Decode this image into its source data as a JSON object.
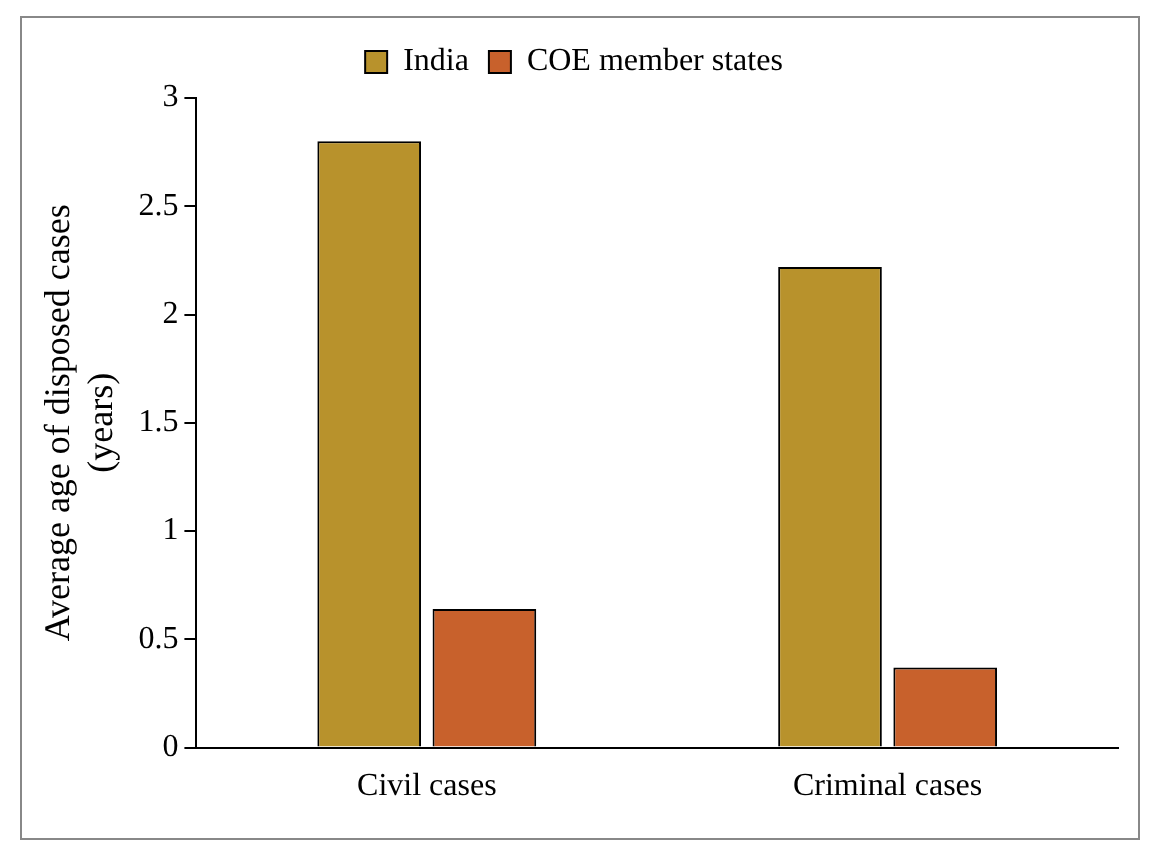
{
  "chart_data": {
    "type": "bar",
    "ylabel": "Average age of disposed cases\n(years)",
    "categories": [
      "Civil cases",
      "Criminal cases"
    ],
    "series": [
      {
        "name": "India",
        "color": "#b8922c",
        "values": [
          2.8,
          2.22
        ]
      },
      {
        "name": "COE member states",
        "color": "#c8612c",
        "values": [
          0.64,
          0.37
        ]
      }
    ],
    "ylim": [
      0,
      3
    ],
    "yticks": [
      0,
      0.5,
      1,
      1.5,
      2,
      2.5,
      3
    ],
    "grid": false,
    "legend": "top"
  }
}
